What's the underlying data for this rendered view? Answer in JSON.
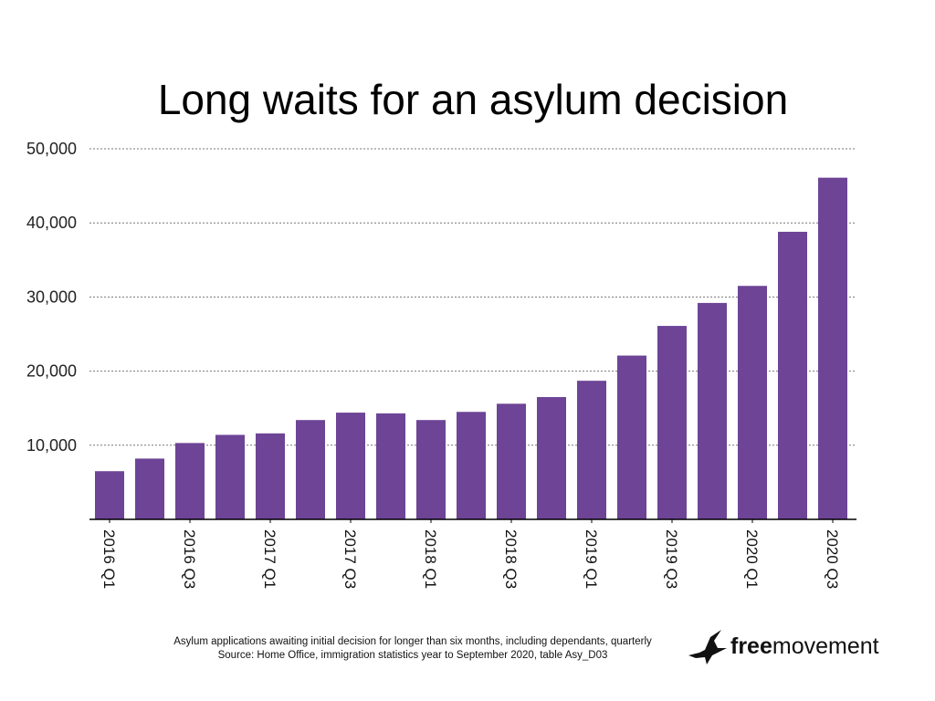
{
  "chart_data": {
    "type": "bar",
    "title": "Long waits for an asylum decision",
    "categories": [
      "2016 Q1",
      "2016 Q2",
      "2016 Q3",
      "2016 Q4",
      "2017 Q1",
      "2017 Q2",
      "2017 Q3",
      "2017 Q4",
      "2018 Q1",
      "2018 Q2",
      "2018 Q3",
      "2018 Q4",
      "2019 Q1",
      "2019 Q2",
      "2019 Q3",
      "2019 Q4",
      "2020 Q1",
      "2020 Q2",
      "2020 Q3"
    ],
    "category_labels_shown": [
      "2016 Q1",
      "2016 Q3",
      "2017 Q1",
      "2017 Q3",
      "2018 Q1",
      "2018 Q3",
      "2019 Q1",
      "2019 Q3",
      "2020 Q1",
      "2020 Q3"
    ],
    "values": [
      6500,
      8200,
      10300,
      11400,
      11600,
      13400,
      14400,
      14300,
      13400,
      14500,
      15600,
      16500,
      18700,
      22100,
      26100,
      29200,
      31500,
      38800,
      46100
    ],
    "y_ticks": [
      "10,000",
      "20,000",
      "30,000",
      "40,000",
      "50,000"
    ],
    "y_tick_values": [
      10000,
      20000,
      30000,
      40000,
      50000
    ],
    "ylim": [
      0,
      50000
    ],
    "grid": true,
    "bar_color": "#6d4496",
    "xlabel": "",
    "ylabel": ""
  },
  "caption": {
    "line1": "Asylum applications awaiting initial decision for longer than six months, including dependants, quarterly",
    "line2": "Source: Home Office, immigration statistics year to September 2020, table Asy_D03"
  },
  "logo": {
    "bold": "free",
    "regular": "movement",
    "icon": "crane-bird-icon"
  }
}
